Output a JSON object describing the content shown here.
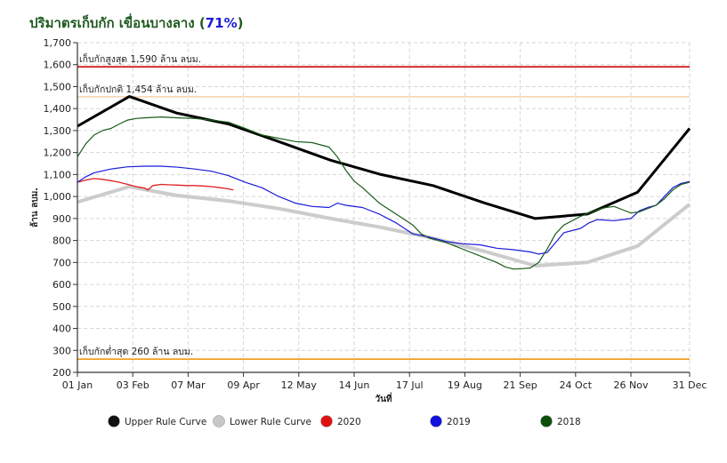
{
  "title_prefix": "ปริมาตรเก็บกัก เขื่อนบางลาง (",
  "title_percent": "71%",
  "title_suffix": ")",
  "chart_data": {
    "type": "line",
    "ylabel": "ล้าน ลบม.",
    "xlabel": "วันที่",
    "ylim": [
      200,
      1700
    ],
    "yticks": [
      "200",
      "300",
      "400",
      "500",
      "600",
      "700",
      "800",
      "900",
      "1,000",
      "1,100",
      "1,200",
      "1,300",
      "1,400",
      "1,500",
      "1,600",
      "1,700"
    ],
    "xlim": [
      0,
      365
    ],
    "xticks": [
      {
        "day": 0,
        "label": "01 Jan"
      },
      {
        "day": 33,
        "label": "03 Feb"
      },
      {
        "day": 66,
        "label": "07 Mar"
      },
      {
        "day": 99,
        "label": "09 Apr"
      },
      {
        "day": 132,
        "label": "12 May"
      },
      {
        "day": 165,
        "label": "14 Jun"
      },
      {
        "day": 198,
        "label": "17 Jul"
      },
      {
        "day": 231,
        "label": "19 Aug"
      },
      {
        "day": 264,
        "label": "21 Sep"
      },
      {
        "day": 297,
        "label": "24 Oct"
      },
      {
        "day": 330,
        "label": "26 Nov"
      },
      {
        "day": 365,
        "label": "31 Dec"
      }
    ],
    "reference_lines": [
      {
        "name": "max",
        "value": 1590,
        "label": "เก็บกักสูงสุด 1,590 ล้าน ลบม.",
        "color": "#d42020"
      },
      {
        "name": "normal",
        "value": 1454,
        "label": "เก็บกักปกติ 1,454 ล้าน ลบม.",
        "color": "#f5d9b8"
      },
      {
        "name": "min",
        "value": 260,
        "label": "เก็บกักต่ำสุด 260 ล้าน ลบม.",
        "color": "#f0a020"
      }
    ],
    "series": [
      {
        "name": "Upper Rule Curve",
        "color": "#000000",
        "width": 3,
        "points": [
          [
            0,
            1320
          ],
          [
            31,
            1455
          ],
          [
            59,
            1380
          ],
          [
            90,
            1330
          ],
          [
            120,
            1250
          ],
          [
            151,
            1165
          ],
          [
            181,
            1100
          ],
          [
            212,
            1050
          ],
          [
            243,
            970
          ],
          [
            273,
            900
          ],
          [
            304,
            920
          ],
          [
            334,
            1020
          ],
          [
            365,
            1310
          ]
        ]
      },
      {
        "name": "Lower Rule Curve",
        "color": "#cccccc",
        "width": 4,
        "points": [
          [
            0,
            975
          ],
          [
            31,
            1045
          ],
          [
            59,
            1005
          ],
          [
            90,
            980
          ],
          [
            120,
            945
          ],
          [
            151,
            900
          ],
          [
            181,
            860
          ],
          [
            212,
            810
          ],
          [
            243,
            750
          ],
          [
            273,
            685
          ],
          [
            304,
            700
          ],
          [
            334,
            775
          ],
          [
            365,
            965
          ]
        ]
      },
      {
        "name": "2020",
        "color": "#e02020",
        "width": 1.3,
        "points": [
          [
            0,
            1065
          ],
          [
            5,
            1075
          ],
          [
            10,
            1082
          ],
          [
            15,
            1078
          ],
          [
            20,
            1072
          ],
          [
            25,
            1065
          ],
          [
            30,
            1055
          ],
          [
            35,
            1045
          ],
          [
            40,
            1038
          ],
          [
            42,
            1030
          ],
          [
            45,
            1050
          ],
          [
            50,
            1055
          ],
          [
            55,
            1053
          ],
          [
            60,
            1052
          ],
          [
            65,
            1050
          ],
          [
            70,
            1050
          ],
          [
            75,
            1048
          ],
          [
            80,
            1045
          ],
          [
            85,
            1040
          ],
          [
            90,
            1035
          ],
          [
            93,
            1030
          ]
        ]
      },
      {
        "name": "2019",
        "color": "#1a1adb",
        "width": 1.2,
        "points": [
          [
            0,
            1065
          ],
          [
            5,
            1090
          ],
          [
            10,
            1108
          ],
          [
            20,
            1125
          ],
          [
            30,
            1135
          ],
          [
            40,
            1138
          ],
          [
            50,
            1138
          ],
          [
            60,
            1133
          ],
          [
            70,
            1125
          ],
          [
            80,
            1115
          ],
          [
            90,
            1095
          ],
          [
            100,
            1065
          ],
          [
            110,
            1040
          ],
          [
            120,
            1000
          ],
          [
            130,
            970
          ],
          [
            140,
            955
          ],
          [
            150,
            950
          ],
          [
            155,
            970
          ],
          [
            160,
            960
          ],
          [
            170,
            950
          ],
          [
            180,
            920
          ],
          [
            190,
            880
          ],
          [
            200,
            830
          ],
          [
            210,
            815
          ],
          [
            220,
            795
          ],
          [
            230,
            785
          ],
          [
            240,
            780
          ],
          [
            250,
            765
          ],
          [
            260,
            758
          ],
          [
            270,
            748
          ],
          [
            275,
            738
          ],
          [
            280,
            745
          ],
          [
            285,
            790
          ],
          [
            290,
            835
          ],
          [
            300,
            855
          ],
          [
            305,
            880
          ],
          [
            310,
            895
          ],
          [
            320,
            890
          ],
          [
            330,
            900
          ],
          [
            335,
            935
          ],
          [
            340,
            950
          ],
          [
            345,
            960
          ],
          [
            350,
            1000
          ],
          [
            355,
            1040
          ],
          [
            360,
            1060
          ],
          [
            365,
            1068
          ]
        ]
      },
      {
        "name": "2018",
        "color": "#1a5c1a",
        "width": 1.2,
        "points": [
          [
            0,
            1180
          ],
          [
            5,
            1240
          ],
          [
            10,
            1280
          ],
          [
            15,
            1300
          ],
          [
            20,
            1310
          ],
          [
            25,
            1330
          ],
          [
            30,
            1348
          ],
          [
            35,
            1355
          ],
          [
            40,
            1358
          ],
          [
            50,
            1362
          ],
          [
            60,
            1358
          ],
          [
            70,
            1355
          ],
          [
            80,
            1348
          ],
          [
            90,
            1338
          ],
          [
            100,
            1310
          ],
          [
            110,
            1280
          ],
          [
            120,
            1265
          ],
          [
            130,
            1250
          ],
          [
            140,
            1245
          ],
          [
            150,
            1225
          ],
          [
            155,
            1180
          ],
          [
            160,
            1120
          ],
          [
            165,
            1070
          ],
          [
            170,
            1040
          ],
          [
            180,
            970
          ],
          [
            190,
            920
          ],
          [
            200,
            870
          ],
          [
            205,
            830
          ],
          [
            210,
            810
          ],
          [
            220,
            790
          ],
          [
            230,
            760
          ],
          [
            240,
            730
          ],
          [
            250,
            700
          ],
          [
            255,
            680
          ],
          [
            260,
            670
          ],
          [
            265,
            672
          ],
          [
            270,
            675
          ],
          [
            275,
            700
          ],
          [
            280,
            760
          ],
          [
            285,
            830
          ],
          [
            290,
            870
          ],
          [
            300,
            910
          ],
          [
            305,
            925
          ],
          [
            310,
            940
          ],
          [
            315,
            950
          ],
          [
            320,
            955
          ],
          [
            325,
            940
          ],
          [
            330,
            925
          ],
          [
            335,
            930
          ],
          [
            340,
            945
          ],
          [
            345,
            960
          ],
          [
            350,
            990
          ],
          [
            355,
            1030
          ],
          [
            360,
            1055
          ],
          [
            365,
            1065
          ]
        ]
      }
    ],
    "legend": [
      {
        "label": "Upper Rule Curve",
        "fill": "#111111"
      },
      {
        "label": "Lower Rule Curve",
        "fill": "#c8c8c8"
      },
      {
        "label": "2020",
        "fill": "#e01010"
      },
      {
        "label": "2019",
        "fill": "#1010e0"
      },
      {
        "label": "2018",
        "fill": "#0b4f0b"
      }
    ]
  }
}
